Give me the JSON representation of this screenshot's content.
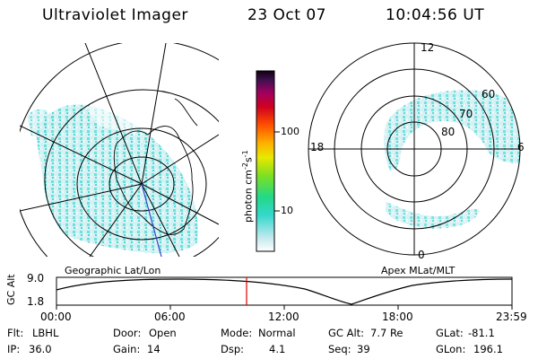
{
  "header": {
    "instrument": "Ultraviolet Imager",
    "date": "23 Oct 07",
    "time": "10:04:56 UT"
  },
  "colorbar": {
    "unit_label_main": "photon cm",
    "unit_exp1": "-2",
    "unit_mid": "s",
    "unit_exp2": "-1",
    "ticks": [
      "100",
      "10"
    ]
  },
  "polar_plot": {
    "mlt_labels": {
      "top": "12",
      "left": "18",
      "right": "6",
      "bottom": "0"
    },
    "lat_labels": [
      "60",
      "70",
      "80"
    ]
  },
  "panel_labels": {
    "left": "Geographic Lat/Lon",
    "right": "Apex MLat/MLT"
  },
  "altitude_plot": {
    "ylabel": "GC Alt",
    "ytick_top": "9.0",
    "ytick_bottom": "1.8",
    "xticks": [
      "00:00",
      "06:00",
      "12:00",
      "18:00",
      "23:59"
    ],
    "marker_color": "#e00000"
  },
  "info": {
    "row1": [
      {
        "label": "Flt:",
        "value": "LBHL"
      },
      {
        "label": "Door:",
        "value": "Open"
      },
      {
        "label": "Mode:",
        "value": "Normal"
      },
      {
        "label": "GC Alt:",
        "value": "7.7 Re"
      },
      {
        "label": "GLat:",
        "value": "-81.1"
      }
    ],
    "row2": [
      {
        "label": "IP:",
        "value": "36.0"
      },
      {
        "label": "Gain:",
        "value": "14"
      },
      {
        "label": "Dsp:",
        "value": "4.1"
      },
      {
        "label": "Seq:",
        "value": "39"
      },
      {
        "label": "GLon:",
        "value": "196.1"
      }
    ]
  }
}
